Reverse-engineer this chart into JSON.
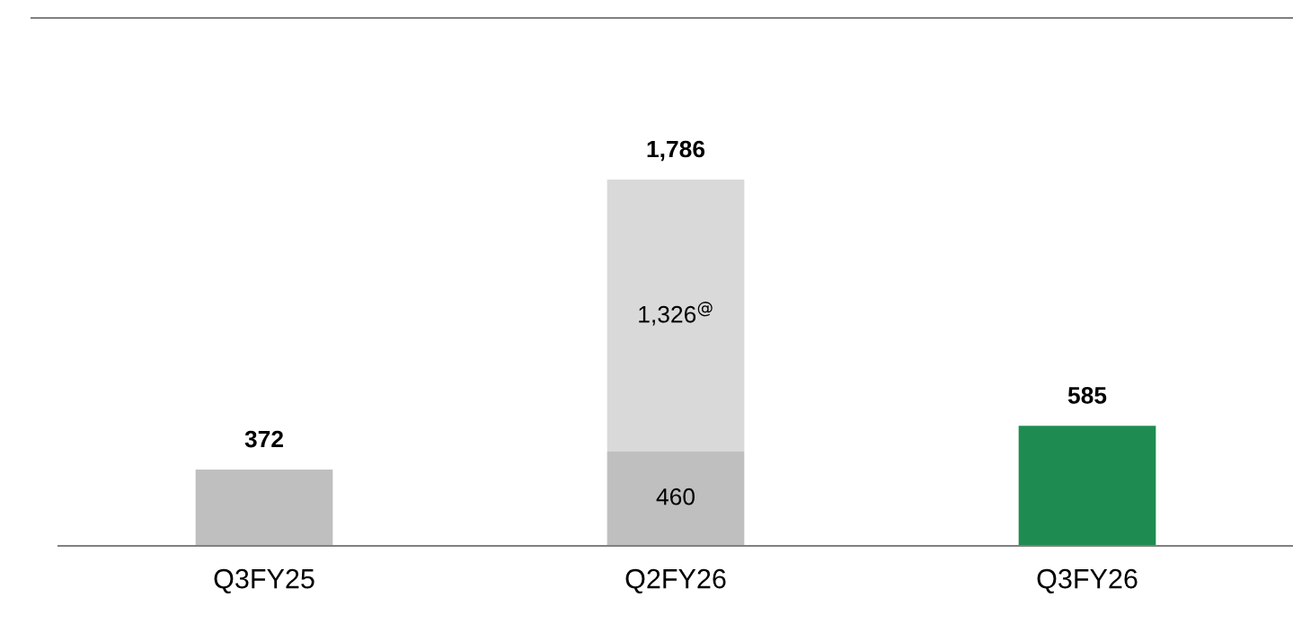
{
  "chart_data": {
    "type": "bar",
    "stacked": true,
    "categories": [
      "Q3FY25",
      "Q2FY26",
      "Q3FY26"
    ],
    "series": [
      {
        "colors": [
          "#bfbfbf",
          "#bfbfbf",
          "#1e8c50"
        ],
        "values": [
          372,
          460,
          585
        ],
        "value_labels": [
          null,
          "460",
          null
        ]
      },
      {
        "color": "#d9d9d9",
        "values": [
          null,
          1326,
          null
        ],
        "value_labels": [
          null,
          "1,326$^{@}$",
          null
        ]
      }
    ],
    "totals": [
      "372",
      "1,786",
      "585"
    ],
    "grid": false,
    "legend": false
  }
}
